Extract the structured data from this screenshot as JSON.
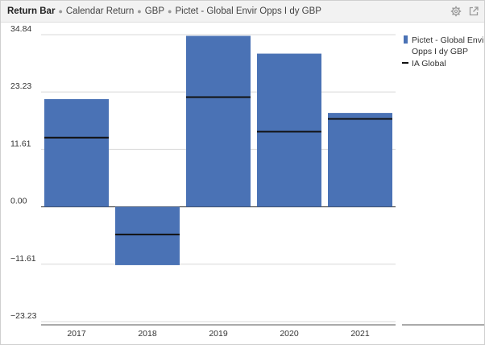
{
  "header": {
    "title": "Return Bar",
    "subtitle_parts": [
      "Calendar Return",
      "GBP",
      "Pictet - Global Envir Opps I dy GBP"
    ],
    "icons": [
      "settings-gear-icon",
      "popout-icon"
    ]
  },
  "colors": {
    "bar": "#4a72b5",
    "benchmark": "#111111",
    "grid": "#d9d9d9",
    "zero_line": "#333333"
  },
  "chart_data": {
    "type": "bar",
    "title": "Return Bar",
    "subtitle": "Calendar Return • GBP • Pictet - Global Envir Opps I dy GBP",
    "categories": [
      "2017",
      "2018",
      "2019",
      "2020",
      "2021"
    ],
    "series": [
      {
        "name": "Pictet - Global Envir Opps I dy GBP",
        "kind": "bar",
        "values": [
          21.8,
          -11.8,
          34.6,
          31.0,
          19.0
        ]
      },
      {
        "name": "IA Global",
        "kind": "marker-line",
        "values": [
          14.0,
          -5.6,
          22.2,
          15.2,
          17.8
        ]
      }
    ],
    "y_ticks": [
      34.84,
      23.23,
      11.61,
      0.0,
      -11.61,
      -23.23
    ],
    "y_tick_labels": [
      "34.84",
      "23.23",
      "11.61",
      "0.00",
      "−11.61",
      "−23.23"
    ],
    "ylim": [
      -23.23,
      34.84
    ],
    "grid": true,
    "legend_position": "right",
    "legend": [
      "Pictet - Global Envir",
      "Opps I dy GBP",
      "IA Global"
    ]
  }
}
